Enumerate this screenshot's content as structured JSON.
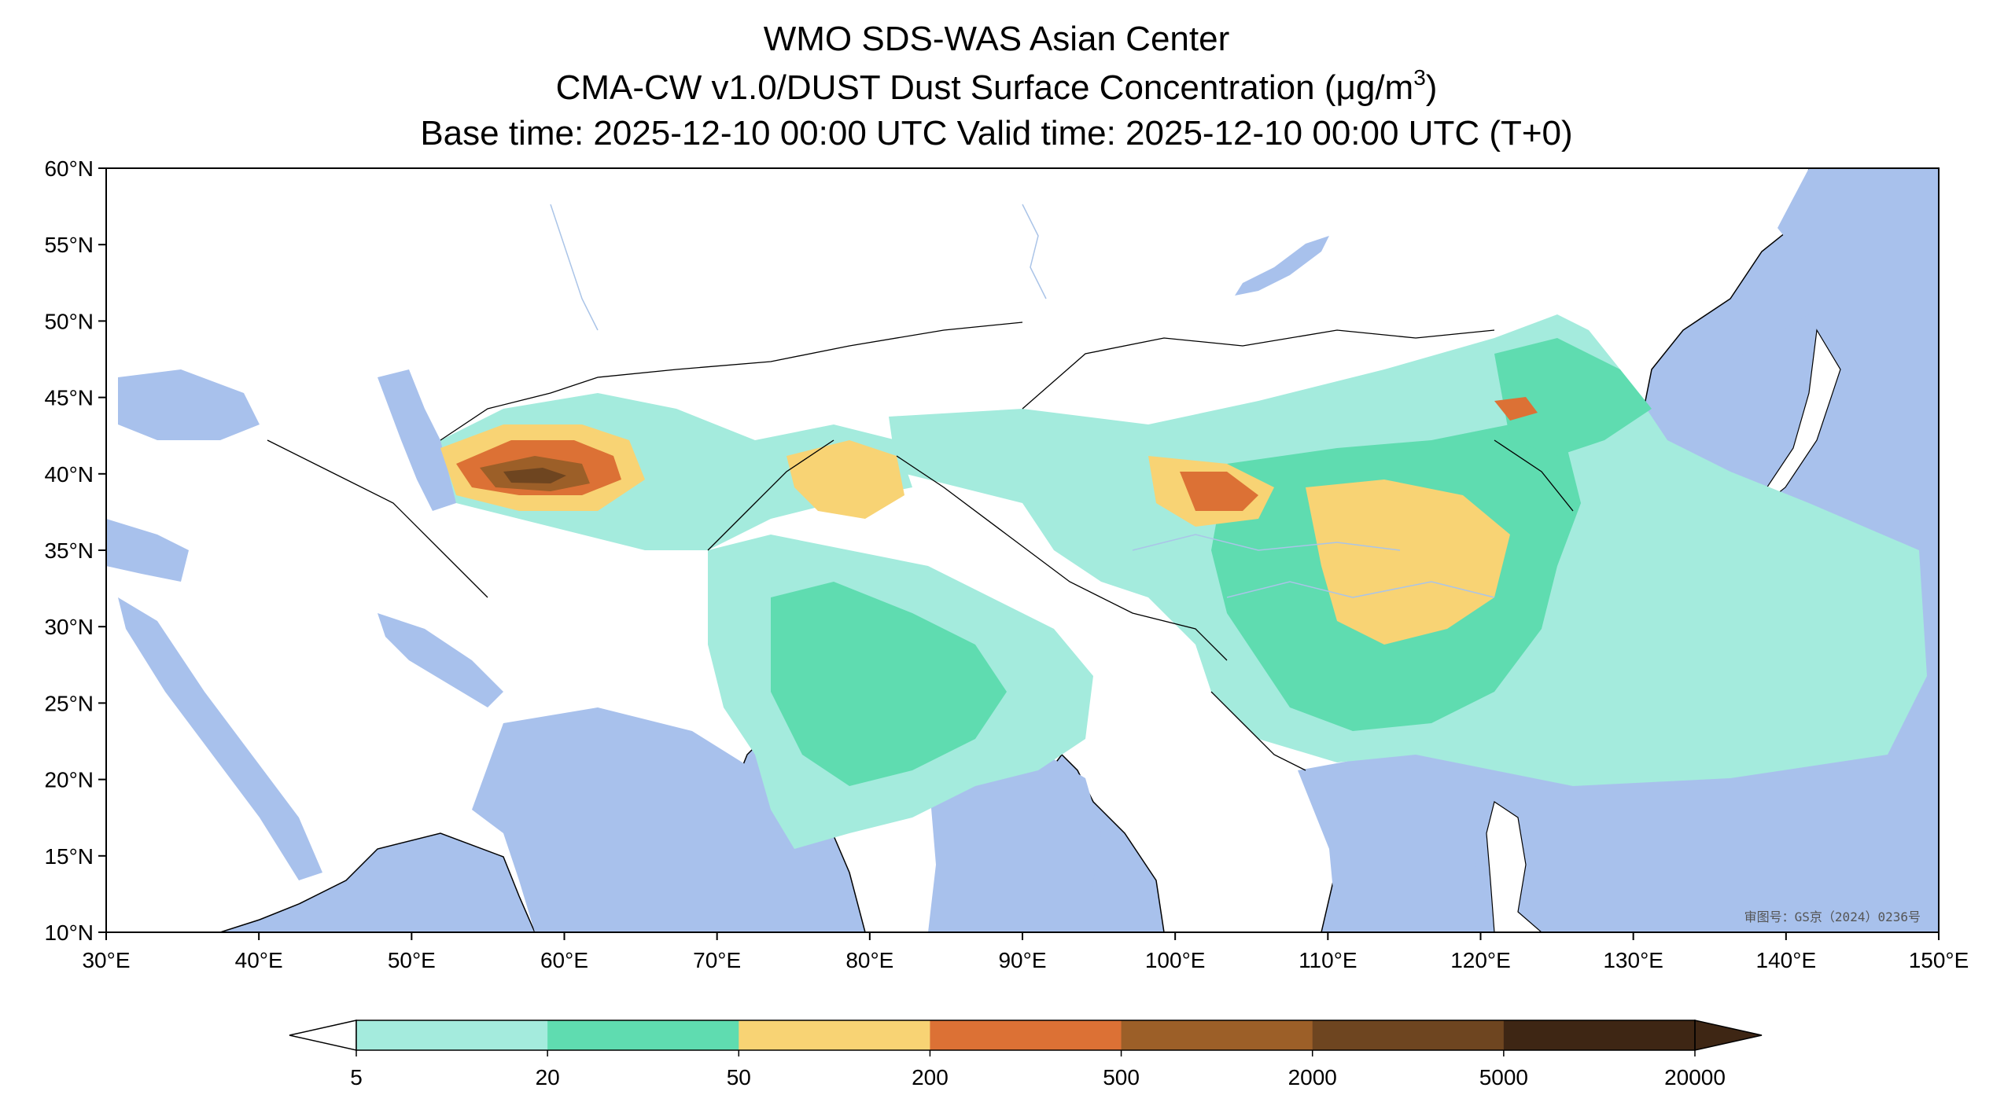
{
  "titles": {
    "line1": "WMO SDS-WAS Asian Center",
    "line2_main": "CMA-CW v1.0/DUST Dust Surface Concentration (μg/m",
    "line2_sup": "3",
    "line2_end": ")",
    "line3": "Base time: 2025-12-10 00:00 UTC Valid time: 2025-12-10 00:00 UTC (T+0)"
  },
  "axes": {
    "lon_ticks": [
      "30°E",
      "40°E",
      "50°E",
      "60°E",
      "70°E",
      "80°E",
      "90°E",
      "100°E",
      "110°E",
      "120°E",
      "130°E",
      "140°E",
      "150°E"
    ],
    "lat_ticks": [
      "60°N",
      "55°N",
      "50°N",
      "45°N",
      "40°N",
      "35°N",
      "30°N",
      "25°N",
      "20°N",
      "15°N",
      "10°N"
    ],
    "lon_range": [
      30,
      150
    ],
    "lat_range": [
      10,
      60
    ]
  },
  "stamp": "审图号：GS京（2024）0236号",
  "colorbar": {
    "levels": [
      "5",
      "20",
      "50",
      "200",
      "500",
      "2000",
      "5000",
      "20000"
    ],
    "colors": [
      "#a4ebdd",
      "#5fdcb0",
      "#f8d374",
      "#dc7135",
      "#9c5f28",
      "#6e4520",
      "#3e2614"
    ],
    "extend": "both"
  },
  "colors": {
    "ocean": "#a8c1ec",
    "land": "#ffffff",
    "border": "#000000",
    "river": "#aac4e8"
  }
}
